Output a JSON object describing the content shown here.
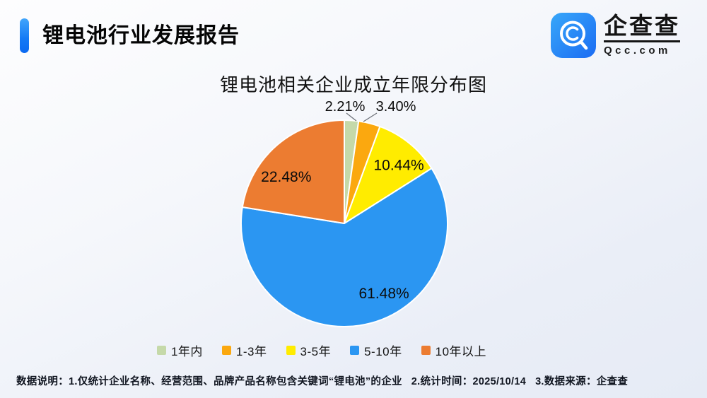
{
  "header": {
    "title": "锂电池行业发展报告",
    "logo": {
      "brand_name": "企查查",
      "brand_domain": "Qcc.com",
      "brand_color_start": "#38a7f9",
      "brand_color_end": "#1b6cf3"
    }
  },
  "chart_data": {
    "type": "pie",
    "title": "锂电池相关企业成立年限分布图",
    "unit": "%",
    "start_angle_deg": 90,
    "direction": "clockwise",
    "legend_position": "bottom",
    "slices": [
      {
        "label": "1年内",
        "value": 2.21,
        "display": "2.21%",
        "color": "#c5d9a9",
        "label_placement": "outside"
      },
      {
        "label": "1-3年",
        "value": 3.4,
        "display": "3.40%",
        "color": "#fba80f",
        "label_placement": "outside"
      },
      {
        "label": "3-5年",
        "value": 10.44,
        "display": "10.44%",
        "color": "#ffec00",
        "label_placement": "inside"
      },
      {
        "label": "5-10年",
        "value": 61.48,
        "display": "61.48%",
        "color": "#2b96f2",
        "label_placement": "inside"
      },
      {
        "label": "10年以上",
        "value": 22.48,
        "display": "22.48%",
        "color": "#ec7c31",
        "label_placement": "inside"
      }
    ]
  },
  "footer": {
    "notes": [
      "数据说明：1.仅统计企业名称、经营范围、品牌产品名称包含关键词“锂电池”的企业",
      "2.统计时间：2025/10/14",
      "3.数据来源：企查查"
    ]
  }
}
